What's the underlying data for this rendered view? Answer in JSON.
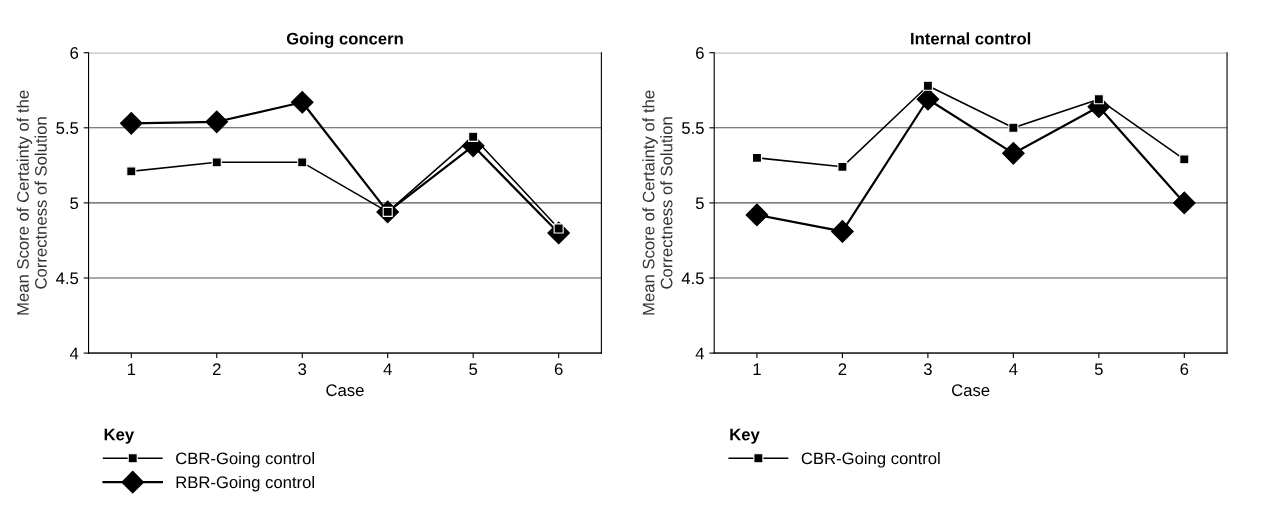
{
  "chart_data": [
    {
      "type": "line",
      "title": "Going concern",
      "xlabel": "Case",
      "ylabel": "Mean Score of Certainty of the\nCorrectness of Solution",
      "legend_title": "Key",
      "categories": [
        "1",
        "2",
        "3",
        "4",
        "5",
        "6"
      ],
      "ylim": [
        4,
        6
      ],
      "yticks": [
        4,
        4.5,
        5,
        5.5,
        6
      ],
      "grid": "y",
      "legend": "bottom",
      "line_style": "solid",
      "series": [
        {
          "name": "CBR-Going control",
          "color": "#000000",
          "marker": "square",
          "values": [
            5.21,
            5.27,
            5.27,
            4.94,
            5.44,
            4.83
          ]
        },
        {
          "name": "RBR-Going control",
          "color": "#000000",
          "marker": "diamond",
          "values": [
            5.53,
            5.54,
            5.67,
            4.94,
            5.38,
            4.8
          ]
        }
      ]
    },
    {
      "type": "line",
      "title": "Internal control",
      "xlabel": "Case",
      "ylabel": "Mean Score of Certainty of the\nCorrectness of Solution",
      "legend_title": "Key",
      "categories": [
        "1",
        "2",
        "3",
        "4",
        "5",
        "6"
      ],
      "ylim": [
        4,
        6
      ],
      "yticks": [
        4,
        4.5,
        5,
        5.5,
        6
      ],
      "grid": "y",
      "legend": "bottom",
      "line_style": "solid",
      "series": [
        {
          "name": "CBR-Going control",
          "color": "#000000",
          "marker": "square",
          "values": [
            5.3,
            5.24,
            5.78,
            5.5,
            5.69,
            5.29
          ]
        },
        {
          "color": "#000000",
          "marker": "diamond",
          "values": [
            4.92,
            4.81,
            5.69,
            5.33,
            5.64,
            5.0
          ]
        }
      ]
    }
  ]
}
